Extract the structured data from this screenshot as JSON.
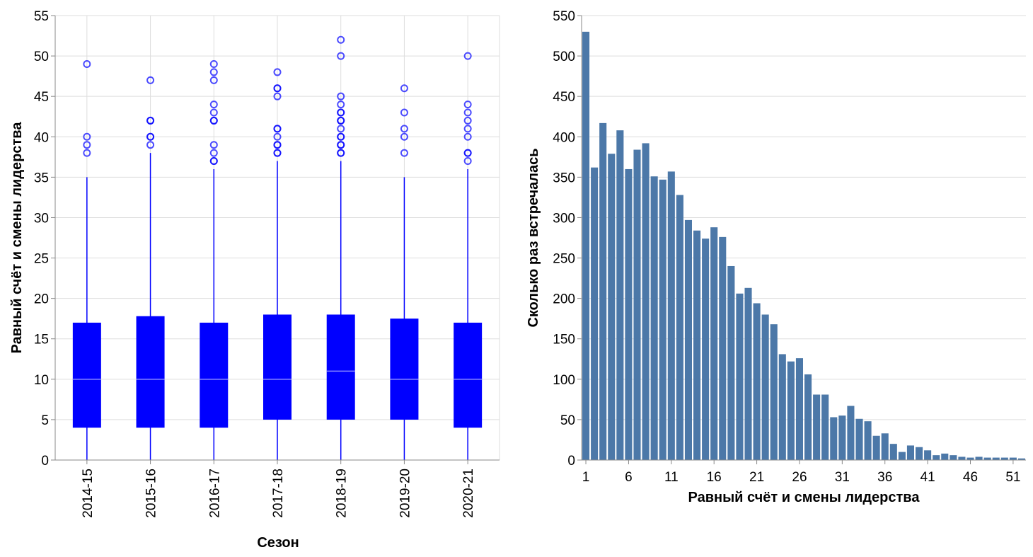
{
  "chart_data": [
    {
      "type": "boxplot",
      "xlabel": "Сезон",
      "ylabel": "Равный счёт и смены лидерства",
      "ylim": [
        0,
        55
      ],
      "yticks": [
        0,
        5,
        10,
        15,
        20,
        25,
        30,
        35,
        40,
        45,
        50,
        55
      ],
      "color": "#0000ff",
      "grid": true,
      "categories": [
        "2014-15",
        "2015-16",
        "2016-17",
        "2017-18",
        "2018-19",
        "2019-20",
        "2020-21"
      ],
      "boxes": [
        {
          "season": "2014-15",
          "min": 0,
          "q1": 4,
          "median": 10,
          "q3": 17,
          "max": 35,
          "outliers": [
            38,
            39,
            40,
            49
          ]
        },
        {
          "season": "2015-16",
          "min": 0,
          "q1": 4,
          "median": 10,
          "q3": 17.8,
          "max": 38,
          "outliers": [
            39,
            40,
            40,
            42,
            42,
            47
          ]
        },
        {
          "season": "2016-17",
          "min": 0,
          "q1": 4,
          "median": 10,
          "q3": 17,
          "max": 36,
          "outliers": [
            37,
            37,
            38,
            39,
            42,
            42,
            43,
            44,
            47,
            48,
            49
          ]
        },
        {
          "season": "2017-18",
          "min": 0,
          "q1": 5,
          "median": 10,
          "q3": 18,
          "max": 37,
          "outliers": [
            38,
            38,
            39,
            39,
            40,
            41,
            41,
            45,
            46,
            46,
            48
          ]
        },
        {
          "season": "2018-19",
          "min": 0,
          "q1": 5,
          "median": 11,
          "q3": 18,
          "max": 37,
          "outliers": [
            38,
            38,
            39,
            39,
            40,
            40,
            41,
            42,
            42,
            43,
            43,
            44,
            45,
            50,
            52
          ]
        },
        {
          "season": "2019-20",
          "min": 0,
          "q1": 5,
          "median": 10,
          "q3": 17.5,
          "max": 35,
          "outliers": [
            38,
            40,
            41,
            43,
            46
          ]
        },
        {
          "season": "2020-21",
          "min": 0,
          "q1": 4,
          "median": 10,
          "q3": 17,
          "max": 36,
          "outliers": [
            37,
            38,
            38,
            40,
            41,
            42,
            43,
            44,
            50
          ]
        }
      ]
    },
    {
      "type": "bar",
      "xlabel": "Равный счёт и смены лидерства",
      "ylabel": "Сколько раз встречалась",
      "ylim": [
        0,
        550
      ],
      "yticks": [
        0,
        50,
        100,
        150,
        200,
        250,
        300,
        350,
        400,
        450,
        500,
        550
      ],
      "xticks": [
        1,
        6,
        11,
        16,
        21,
        26,
        31,
        36,
        41,
        46,
        51
      ],
      "color": "#4c78a8",
      "grid": true,
      "x": [
        1,
        2,
        3,
        4,
        5,
        6,
        7,
        8,
        9,
        10,
        11,
        12,
        13,
        14,
        15,
        16,
        17,
        18,
        19,
        20,
        21,
        22,
        23,
        24,
        25,
        26,
        27,
        28,
        29,
        30,
        31,
        32,
        33,
        34,
        35,
        36,
        37,
        38,
        39,
        40,
        41,
        42,
        43,
        44,
        45,
        46,
        47,
        48,
        49,
        50,
        51,
        52
      ],
      "values": [
        530,
        362,
        417,
        379,
        408,
        360,
        384,
        392,
        351,
        347,
        357,
        328,
        297,
        284,
        274,
        288,
        276,
        240,
        206,
        213,
        194,
        180,
        168,
        131,
        122,
        126,
        106,
        81,
        81,
        53,
        55,
        67,
        51,
        48,
        30,
        33,
        20,
        10,
        18,
        16,
        12,
        6,
        8,
        6,
        4,
        3,
        4,
        3,
        3,
        3,
        3,
        2
      ]
    }
  ]
}
